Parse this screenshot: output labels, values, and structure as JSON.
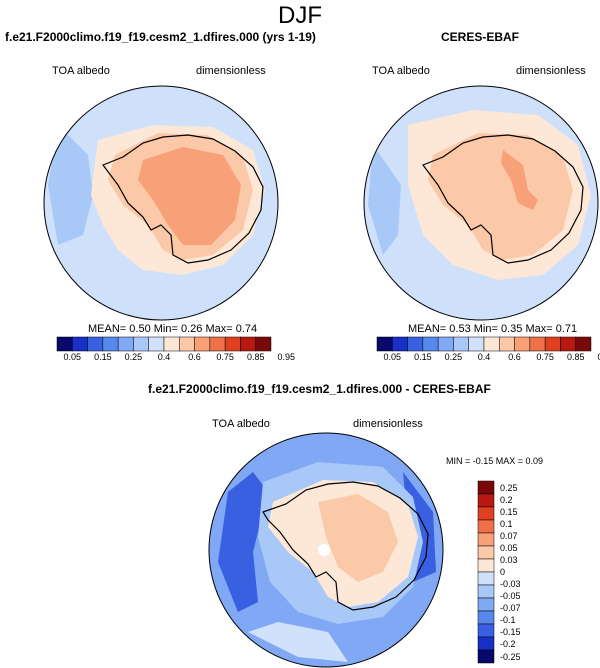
{
  "page": {
    "title": "DJF"
  },
  "panels": [
    {
      "id": "model",
      "title": "f.e21.F2000climo.f19_f19.cesm2_1.dfires.000 (yrs 1-19)",
      "left_label": "TOA albedo",
      "right_label": "dimensionless",
      "stats": {
        "mean_label": "MEAN=",
        "mean": "0.50",
        "min_label": "Min=",
        "min": "0.26",
        "max_label": "Max=",
        "max": "0.74"
      }
    },
    {
      "id": "obs",
      "title": "CERES-EBAF",
      "left_label": "TOA albedo",
      "right_label": "dimensionless",
      "stats": {
        "mean_label": "MEAN=",
        "mean": "0.53",
        "min_label": "Min=",
        "min": "0.35",
        "max_label": "Max=",
        "max": "0.71"
      }
    },
    {
      "id": "diff",
      "title": "f.e21.F2000climo.f19_f19.cesm2_1.dfires.000 - CERES-EBAF",
      "left_label": "TOA albedo",
      "right_label": "dimensionless",
      "stats_text": "MIN = -0.15 MAX =  0.09"
    }
  ],
  "colorbar_abs": {
    "colors": [
      "#08086b",
      "#1830c8",
      "#3860e0",
      "#5888ee",
      "#80a8f4",
      "#a8c8f8",
      "#d0e2fb",
      "#fde8d8",
      "#fbc8a8",
      "#f8a078",
      "#f07048",
      "#e04020",
      "#b81810",
      "#7a0808"
    ],
    "tick_labels": [
      "0.05",
      "0.15",
      "0.25",
      "0.4",
      "0.6",
      "0.75",
      "0.85",
      "0.95"
    ]
  },
  "colorbar_diff": {
    "colors_top_to_bottom": [
      "#7a0808",
      "#b81810",
      "#e04020",
      "#f07048",
      "#f8a078",
      "#fbc8a8",
      "#fde8d8",
      "#d0e2fb",
      "#a8c8f8",
      "#80a8f4",
      "#5888ee",
      "#3860e0",
      "#1830c8",
      "#08086b"
    ],
    "tick_labels_top_to_bottom": [
      "0.25",
      "0.2",
      "0.15",
      "0.1",
      "0.07",
      "0.05",
      "0.03",
      "0",
      "-0.03",
      "-0.05",
      "-0.07",
      "-0.1",
      "-0.15",
      "-0.2",
      "-0.25"
    ]
  },
  "map_colors": {
    "ocean_abs": "#cfe0fb",
    "ocean_abs_inner": "#a8c8f8",
    "ice_ring_model": "#fde8d8",
    "land_model": "#f8a078",
    "land_model_edge": "#fbc8a8",
    "ice_ring_obs": "#fde8d8",
    "land_obs": "#fbc8a8",
    "land_obs_patch": "#f8a078",
    "diff_ocean": "#80a8f4",
    "diff_ocean_dark": "#3860e0",
    "diff_ocean_light": "#d0e2fb",
    "diff_land": "#fde8d8",
    "diff_land_pos": "#fbc8a8",
    "diff_missing": "#ffffff"
  }
}
